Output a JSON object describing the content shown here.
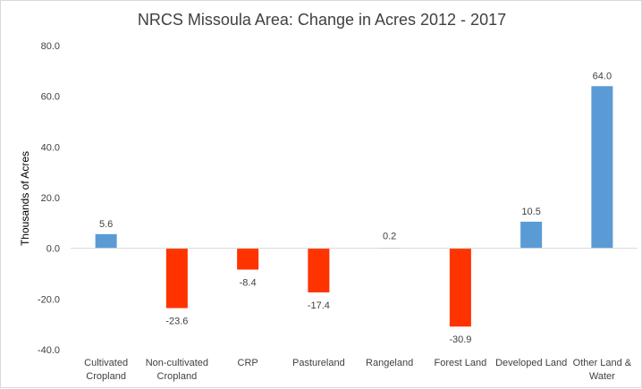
{
  "chart_data": {
    "type": "bar",
    "title": "NRCS Missoula Area: Change in Acres 2012 - 2017",
    "xlabel": "",
    "ylabel": "Thousands of Acres",
    "ylim": [
      -40,
      80
    ],
    "yticks": [
      "80.0",
      "60.0",
      "40.0",
      "20.0",
      "0.0",
      "-20.0",
      "-40.0"
    ],
    "ytick_values": [
      80,
      60,
      40,
      20,
      0,
      -20,
      -40
    ],
    "categories": [
      [
        "Cultivated",
        "Cropland"
      ],
      [
        "Non-cultivated",
        "Cropland"
      ],
      [
        "CRP"
      ],
      [
        "Pastureland"
      ],
      [
        "Rangeland"
      ],
      [
        "Forest Land"
      ],
      [
        "Developed Land"
      ],
      [
        "Other Land &",
        "Water"
      ]
    ],
    "values": [
      5.6,
      -23.6,
      -8.4,
      -17.4,
      0.2,
      -30.9,
      10.5,
      64.0
    ],
    "data_labels": [
      "5.6",
      "-23.6",
      "-8.4",
      "-17.4",
      "0.2",
      "-30.9",
      "10.5",
      "64.0"
    ],
    "colors": {
      "positive": "#5b9bd5",
      "negative": "#ff3300"
    },
    "grid": false,
    "legend": "none"
  }
}
